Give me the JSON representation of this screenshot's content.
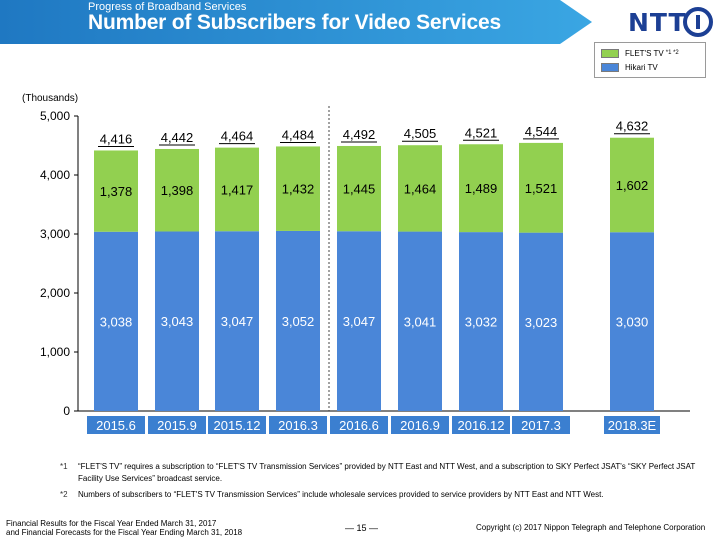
{
  "header": {
    "section": "Progress of Broadband Services",
    "title": "Number of Subscribers for Video Services"
  },
  "logo": {
    "text": "NTT"
  },
  "colors": {
    "green": "#92D050",
    "blue": "#4A86D8",
    "header": "#2E8FD0"
  },
  "chart_data": {
    "type": "bar",
    "stacked": true,
    "unit_label": "(Thousands)",
    "categories": [
      "2015.6",
      "2015.9",
      "2015.12",
      "2016.3",
      "2016.6",
      "2016.9",
      "2016.12",
      "2017.3",
      "2018.3E"
    ],
    "series": [
      {
        "name": "Hikari TV",
        "values": [
          3038,
          3043,
          3047,
          3052,
          3047,
          3041,
          3032,
          3023,
          3030
        ],
        "labels": [
          "3,038",
          "3,043",
          "3,047",
          "3,052",
          "3,047",
          "3,041",
          "3,032",
          "3,023",
          "3,030"
        ]
      },
      {
        "name": "FLET'S TV",
        "name_suffix": "*1 *2",
        "values": [
          1378,
          1398,
          1417,
          1432,
          1445,
          1464,
          1489,
          1521,
          1602
        ],
        "labels": [
          "1,378",
          "1,398",
          "1,417",
          "1,432",
          "1,445",
          "1,464",
          "1,489",
          "1,521",
          "1,602"
        ]
      }
    ],
    "totals": [
      "4,416",
      "4,442",
      "4,464",
      "4,484",
      "4,492",
      "4,505",
      "4,521",
      "4,544",
      "4,632"
    ],
    "y_ticks": [
      "0",
      "1,000",
      "2,000",
      "3,000",
      "4,000",
      "5,000"
    ],
    "ylim": [
      0,
      5000
    ],
    "grid": false,
    "legend_position": "top-right"
  },
  "legend": {
    "items": [
      {
        "label": "FLET'S TV",
        "suffix": "*1 *2"
      },
      {
        "label": "Hikari TV",
        "suffix": ""
      }
    ]
  },
  "footnotes": [
    {
      "mark": "*1",
      "text": "“FLET'S TV” requires a subscription to “FLET'S TV Transmission Services” provided by NTT East and NTT West, and a subscription to SKY Perfect JSAT's “SKY Perfect JSAT Facility Use Services” broadcast service."
    },
    {
      "mark": "*2",
      "text": "Numbers of subscribers to “FLET'S TV Transmission Services” include wholesale services provided to service providers by NTT East and NTT West."
    }
  ],
  "footer": {
    "line1": "Financial Results for the Fiscal Year Ended March 31, 2017",
    "line2": "and Financial Forecasts for the Fiscal Year Ending March 31, 2018",
    "page": "― 15 ―",
    "copyright": "Copyright (c) 2017  Nippon Telegraph and Telephone Corporation"
  }
}
